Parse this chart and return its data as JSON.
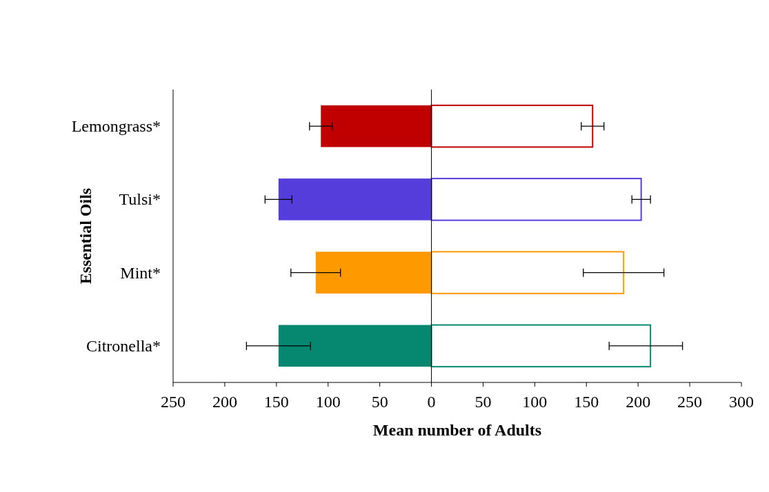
{
  "chart_data": {
    "type": "bar",
    "orientation": "horizontal",
    "stacked": true,
    "xlabel": "Mean number of Adults",
    "ylabel": "Essential Oils",
    "categories": [
      "Lemongrass*",
      "Tulsi*",
      "Mint*",
      "Citronella*"
    ],
    "series": [
      {
        "colors": [
          "#c00000",
          "#553ddb",
          "#ff9900",
          "#068870"
        ],
        "values": [
          -107,
          -148,
          -112,
          -148
        ],
        "errors": [
          11,
          13,
          24,
          31
        ]
      },
      {
        "colors": [
          "#c00000",
          "#553ddb",
          "#ff9900",
          "#068870"
        ],
        "values": [
          156,
          203,
          186,
          212
        ],
        "errors": [
          11,
          9,
          39,
          [
            172,
            243
          ]
        ]
      }
    ],
    "xlim": [
      -250,
      300
    ],
    "xticks": [
      {
        "value": -250,
        "label": "250"
      },
      {
        "value": -200,
        "label": "200"
      },
      {
        "value": -150,
        "label": "150"
      },
      {
        "value": -100,
        "label": "100"
      },
      {
        "value": -50,
        "label": "50"
      },
      0,
      50,
      100,
      150,
      200,
      250,
      300
    ],
    "ref_lines": [
      {
        "axis": "x",
        "value": 0
      }
    ]
  }
}
